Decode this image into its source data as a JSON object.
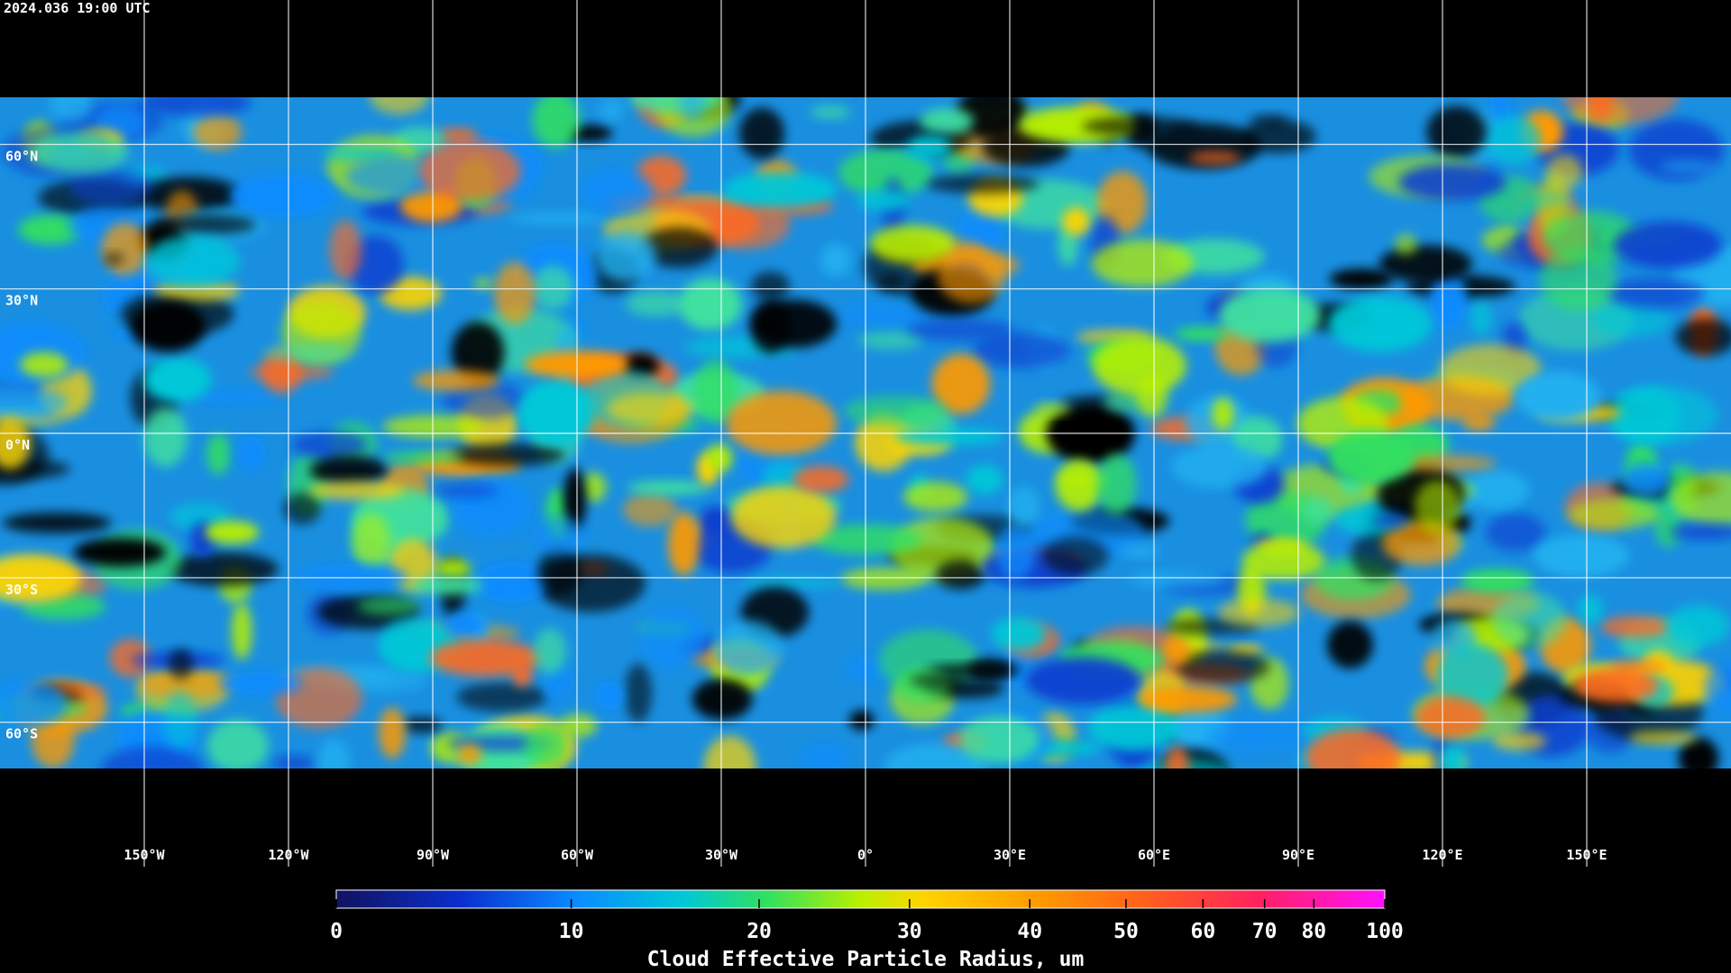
{
  "timestamp": "2024.036 19:00 UTC",
  "map": {
    "xlim": [
      -180,
      180
    ],
    "ylim": [
      -90,
      90
    ],
    "lon_ticks": [
      {
        "value": -150,
        "label": "150°W"
      },
      {
        "value": -120,
        "label": "120°W"
      },
      {
        "value": -90,
        "label": "90°W"
      },
      {
        "value": -60,
        "label": "60°W"
      },
      {
        "value": -30,
        "label": "30°W"
      },
      {
        "value": 0,
        "label": "0°"
      },
      {
        "value": 30,
        "label": "30°E"
      },
      {
        "value": 60,
        "label": "60°E"
      },
      {
        "value": 90,
        "label": "90°E"
      },
      {
        "value": 120,
        "label": "120°E"
      },
      {
        "value": 150,
        "label": "150°E"
      }
    ],
    "lat_ticks": [
      {
        "value": 60,
        "label": "60°N"
      },
      {
        "value": 30,
        "label": "30°N"
      },
      {
        "value": 0,
        "label": "0°N"
      },
      {
        "value": -30,
        "label": "30°S"
      },
      {
        "value": -60,
        "label": "60°S"
      }
    ]
  },
  "colorbar": {
    "label": "Cloud Effective Particle Radius, um",
    "range": [
      0,
      100
    ],
    "ticks": [
      0,
      10,
      20,
      30,
      40,
      50,
      60,
      70,
      80,
      100
    ]
  }
}
